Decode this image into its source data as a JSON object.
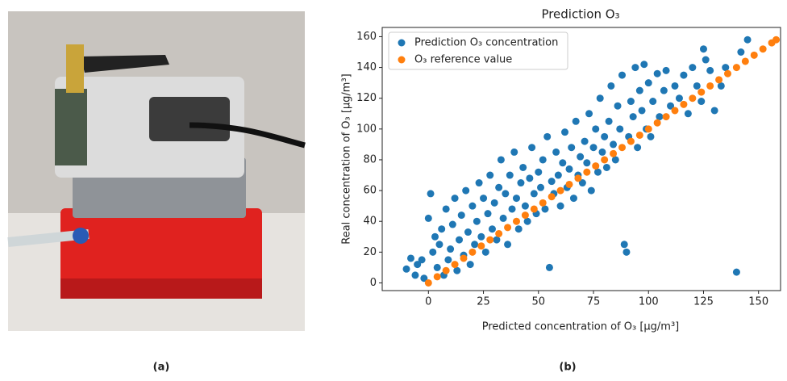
{
  "figure": {
    "panel_labels": [
      "(a)",
      "(b)"
    ]
  },
  "chart_data": {
    "type": "scatter",
    "title": "Prediction O₃",
    "x_label": "Predicted concentration of O₃ [µg/m³]",
    "y_label": "Real concentration of O₃ [µg/m³]",
    "xlim": [
      -21,
      160
    ],
    "ylim": [
      -5,
      166
    ],
    "xticks": [
      0,
      25,
      50,
      75,
      100,
      125,
      150
    ],
    "yticks": [
      0,
      20,
      40,
      60,
      80,
      100,
      120,
      140,
      160
    ],
    "grid": false,
    "legend": "upper-left",
    "series": [
      {
        "name": "Prediction O₃ concentration",
        "color": "#1f77b4",
        "x": [
          -10,
          -8,
          -6,
          -5,
          -3,
          -2,
          0,
          1,
          2,
          3,
          4,
          5,
          6,
          7,
          8,
          9,
          10,
          11,
          12,
          13,
          14,
          15,
          16,
          17,
          18,
          19,
          20,
          21,
          22,
          23,
          24,
          25,
          26,
          27,
          28,
          29,
          30,
          31,
          32,
          33,
          34,
          35,
          36,
          37,
          38,
          39,
          40,
          41,
          42,
          43,
          44,
          45,
          46,
          47,
          48,
          49,
          50,
          51,
          52,
          53,
          54,
          55,
          56,
          57,
          58,
          59,
          60,
          61,
          62,
          63,
          64,
          65,
          66,
          67,
          68,
          69,
          70,
          71,
          72,
          73,
          74,
          75,
          76,
          77,
          78,
          79,
          80,
          81,
          82,
          83,
          84,
          85,
          86,
          87,
          88,
          89,
          90,
          91,
          92,
          93,
          94,
          95,
          96,
          97,
          98,
          99,
          100,
          101,
          102,
          104,
          105,
          107,
          108,
          110,
          112,
          114,
          116,
          118,
          120,
          122,
          124,
          125,
          126,
          128,
          130,
          133,
          135,
          140,
          145,
          142
        ],
        "values": [
          9,
          16,
          5,
          12,
          15,
          3,
          42,
          58,
          20,
          30,
          10,
          25,
          35,
          5,
          48,
          15,
          22,
          38,
          55,
          8,
          28,
          44,
          18,
          60,
          33,
          12,
          50,
          25,
          40,
          65,
          30,
          55,
          20,
          45,
          70,
          35,
          52,
          28,
          62,
          80,
          42,
          58,
          25,
          70,
          48,
          85,
          55,
          35,
          65,
          75,
          50,
          40,
          68,
          88,
          58,
          45,
          72,
          62,
          80,
          48,
          95,
          10,
          66,
          58,
          85,
          70,
          50,
          78,
          98,
          62,
          74,
          88,
          55,
          105,
          70,
          82,
          65,
          92,
          78,
          110,
          60,
          88,
          100,
          72,
          120,
          85,
          95,
          75,
          105,
          128,
          90,
          80,
          115,
          100,
          135,
          25,
          20,
          95,
          118,
          108,
          140,
          88,
          125,
          112,
          142,
          100,
          130,
          95,
          118,
          136,
          108,
          125,
          138,
          115,
          128,
          120,
          135,
          110,
          140,
          128,
          118,
          152,
          145,
          138,
          112,
          128,
          140,
          7,
          158,
          150
        ]
      },
      {
        "name": "O₃ reference value",
        "color": "#ff7f0e",
        "x": [
          0,
          4,
          8,
          12,
          16,
          20,
          24,
          28,
          32,
          36,
          40,
          44,
          48,
          52,
          56,
          60,
          64,
          68,
          72,
          76,
          80,
          84,
          88,
          92,
          96,
          100,
          104,
          108,
          112,
          116,
          120,
          124,
          128,
          132,
          136,
          140,
          144,
          148,
          152,
          156,
          158
        ],
        "values": [
          0,
          4,
          8,
          12,
          16,
          20,
          24,
          28,
          32,
          36,
          40,
          44,
          48,
          52,
          56,
          60,
          64,
          68,
          72,
          76,
          80,
          84,
          88,
          92,
          96,
          100,
          104,
          108,
          112,
          116,
          120,
          124,
          128,
          132,
          136,
          140,
          144,
          148,
          152,
          156,
          158
        ]
      }
    ]
  }
}
